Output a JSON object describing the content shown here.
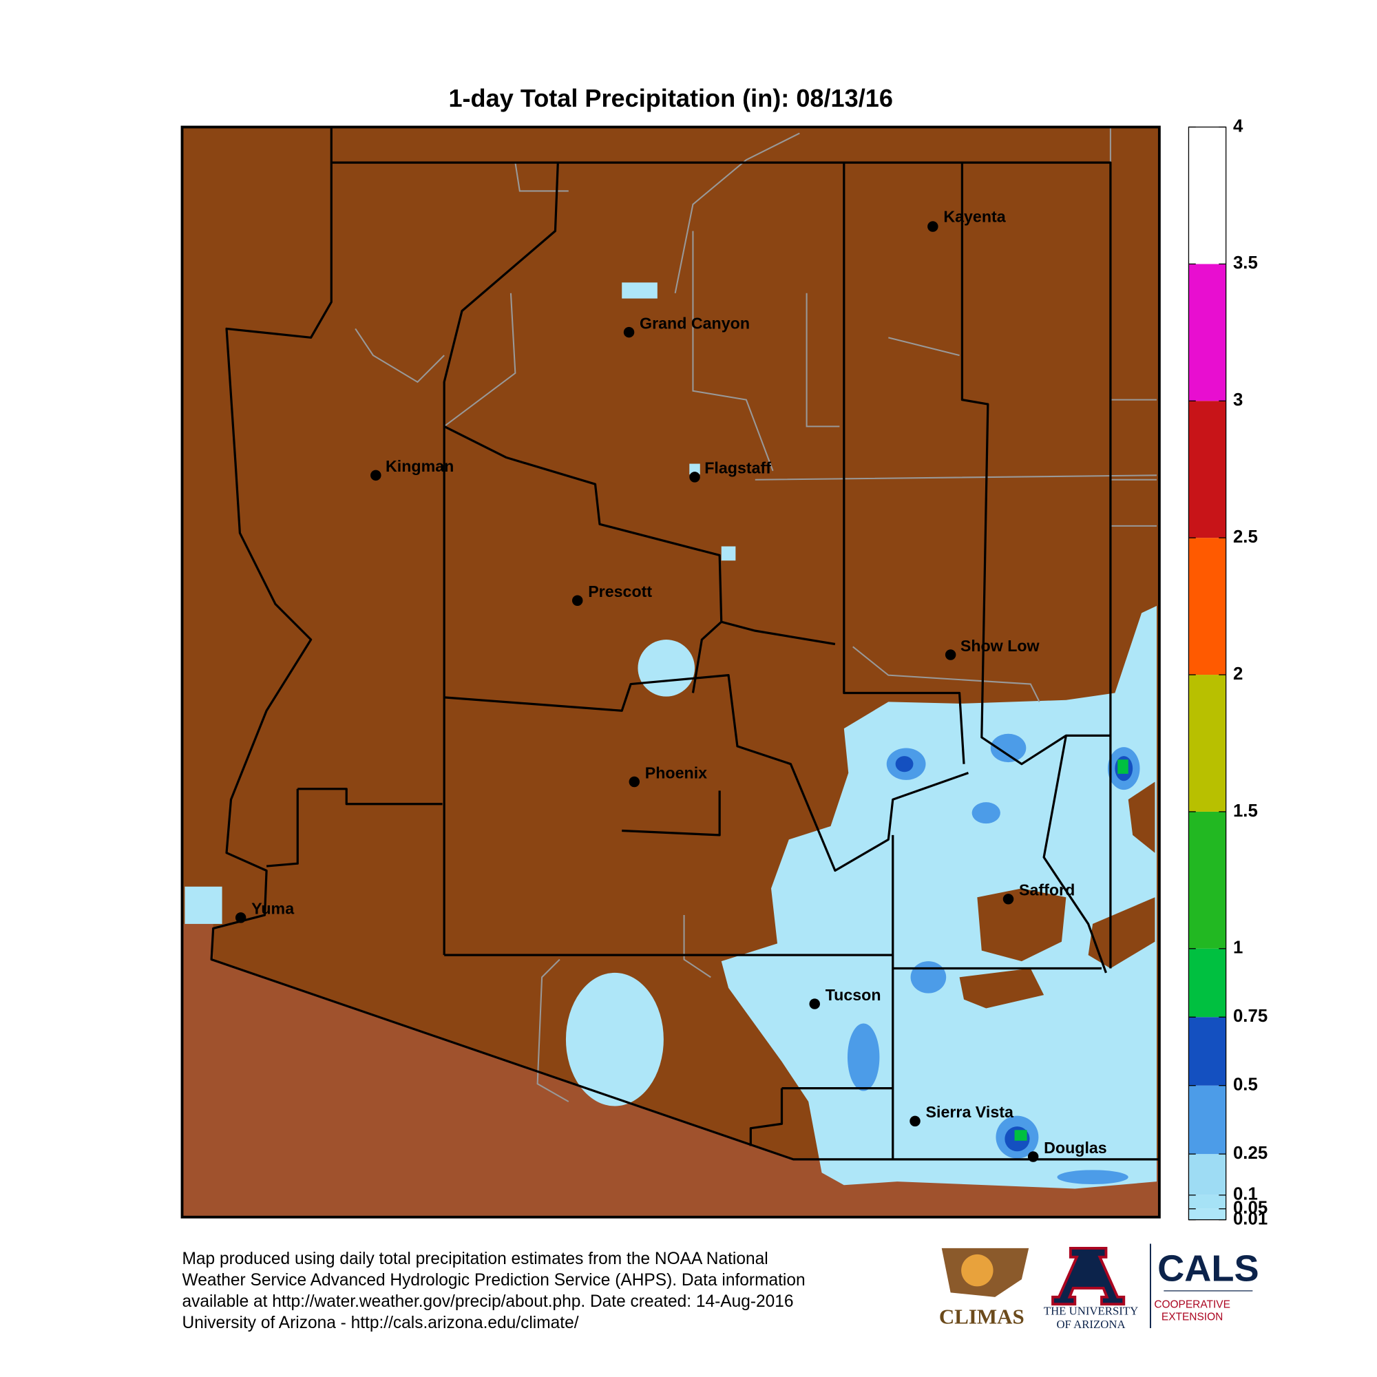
{
  "title": "1-day Total Precipitation (in): 08/13/16",
  "colorbar": {
    "lim": [
      0.01,
      4
    ],
    "ticks": [
      0.01,
      0.05,
      0.1,
      0.25,
      0.5,
      0.75,
      1,
      1.5,
      2,
      2.5,
      3,
      3.5,
      4
    ],
    "band_colors": [
      "#aee6f8",
      "#a6e2f6",
      "#9edcf4",
      "#4c9ce8",
      "#1450c0",
      "#00c040",
      "#22b822",
      "#b8c000",
      "#ff5a00",
      "#c81418",
      "#e80ed0",
      "#ffffff"
    ]
  },
  "cities": [
    "Kayenta",
    "Grand Canyon",
    "Kingman",
    "Flagstaff",
    "Prescott",
    "Show Low",
    "Phoenix",
    "Safford",
    "Yuma",
    "Tucson",
    "Sierra Vista",
    "Douglas"
  ],
  "footer": [
    "Map produced using daily total precipitation estimates from the NOAA National",
    "Weather Service Advanced Hydrologic Prediction Service (AHPS). Data information",
    "available at http://water.weather.gov/precip/about.php. Date created: 14-Aug-2016",
    "University of Arizona - http://cals.arizona.edu/climate/"
  ],
  "logos": {
    "climas": "CLIMAS",
    "ua": [
      "THE UNIVERSITY",
      "OF ARIZONA"
    ],
    "cals": "CALS",
    "cals_sub": [
      "COOPERATIVE",
      "EXTENSION"
    ]
  }
}
